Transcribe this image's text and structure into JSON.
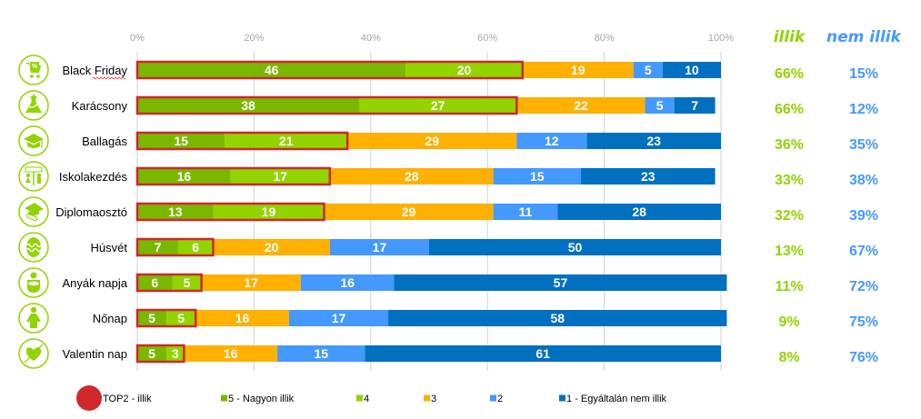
{
  "chart_data": {
    "type": "bar",
    "orientation": "horizontal",
    "stacked": "100%",
    "title": "",
    "xlabel": "",
    "ylabel": "",
    "xlim": [
      0,
      100
    ],
    "x_ticks": [
      "0%",
      "20%",
      "40%",
      "60%",
      "80%",
      "100%"
    ],
    "grid": true,
    "categories": [
      "Black Friday",
      "Karácsony",
      "Ballagás",
      "Iskolakezdés",
      "Diplomaosztó",
      "Húsvét",
      "Anyák napja",
      "Nőnap",
      "Valentin nap"
    ],
    "category_icons": [
      "shopping-cart-percent-icon",
      "christmas-tree-icon",
      "graduation-cap-icon",
      "school-kids-icon",
      "diploma-cap-icon",
      "easter-egg-icon",
      "mother-baby-icon",
      "woman-icon",
      "heart-arrow-icon"
    ],
    "series": [
      {
        "name": "5 - Nagyon illik",
        "color": "#7ab800",
        "values": [
          46,
          38,
          15,
          16,
          13,
          7,
          6,
          5,
          5
        ]
      },
      {
        "name": "4",
        "color": "#92d400",
        "values": [
          20,
          27,
          21,
          17,
          19,
          6,
          5,
          5,
          3
        ]
      },
      {
        "name": "3",
        "color": "#ffb000",
        "values": [
          19,
          22,
          29,
          28,
          29,
          20,
          17,
          16,
          16
        ]
      },
      {
        "name": "2",
        "color": "#4499ff",
        "values": [
          5,
          5,
          12,
          15,
          11,
          17,
          16,
          17,
          15
        ]
      },
      {
        "name": "1 - Egyáltalán nem illik",
        "color": "#0070c0",
        "values": [
          10,
          7,
          23,
          23,
          28,
          50,
          57,
          58,
          61
        ]
      }
    ],
    "highlight": {
      "name": "TOP2 - illik",
      "color": "#d0272d",
      "series_covered": [
        "5 - Nagyon illik",
        "4"
      ]
    },
    "legend": {
      "position": "bottom",
      "items": [
        {
          "label": "TOP2 - illik",
          "color": "#d0272d",
          "shape": "circle"
        },
        {
          "label": "5 - Nagyon illik",
          "color": "#7ab800",
          "shape": "square"
        },
        {
          "label": "4",
          "color": "#92d400",
          "shape": "square"
        },
        {
          "label": "3",
          "color": "#ffb000",
          "shape": "square"
        },
        {
          "label": "2",
          "color": "#4499ff",
          "shape": "square"
        },
        {
          "label": "1 - Egyáltalán nem illik",
          "color": "#0070c0",
          "shape": "square"
        }
      ]
    },
    "summary_columns": [
      {
        "header": "illik",
        "color": "#92d400",
        "values": [
          "66%",
          "66%",
          "36%",
          "33%",
          "32%",
          "13%",
          "11%",
          "9%",
          "8%"
        ]
      },
      {
        "header": "nem illik",
        "color": "#4499ff",
        "values": [
          "15%",
          "12%",
          "35%",
          "38%",
          "39%",
          "67%",
          "72%",
          "75%",
          "76%"
        ]
      }
    ]
  }
}
